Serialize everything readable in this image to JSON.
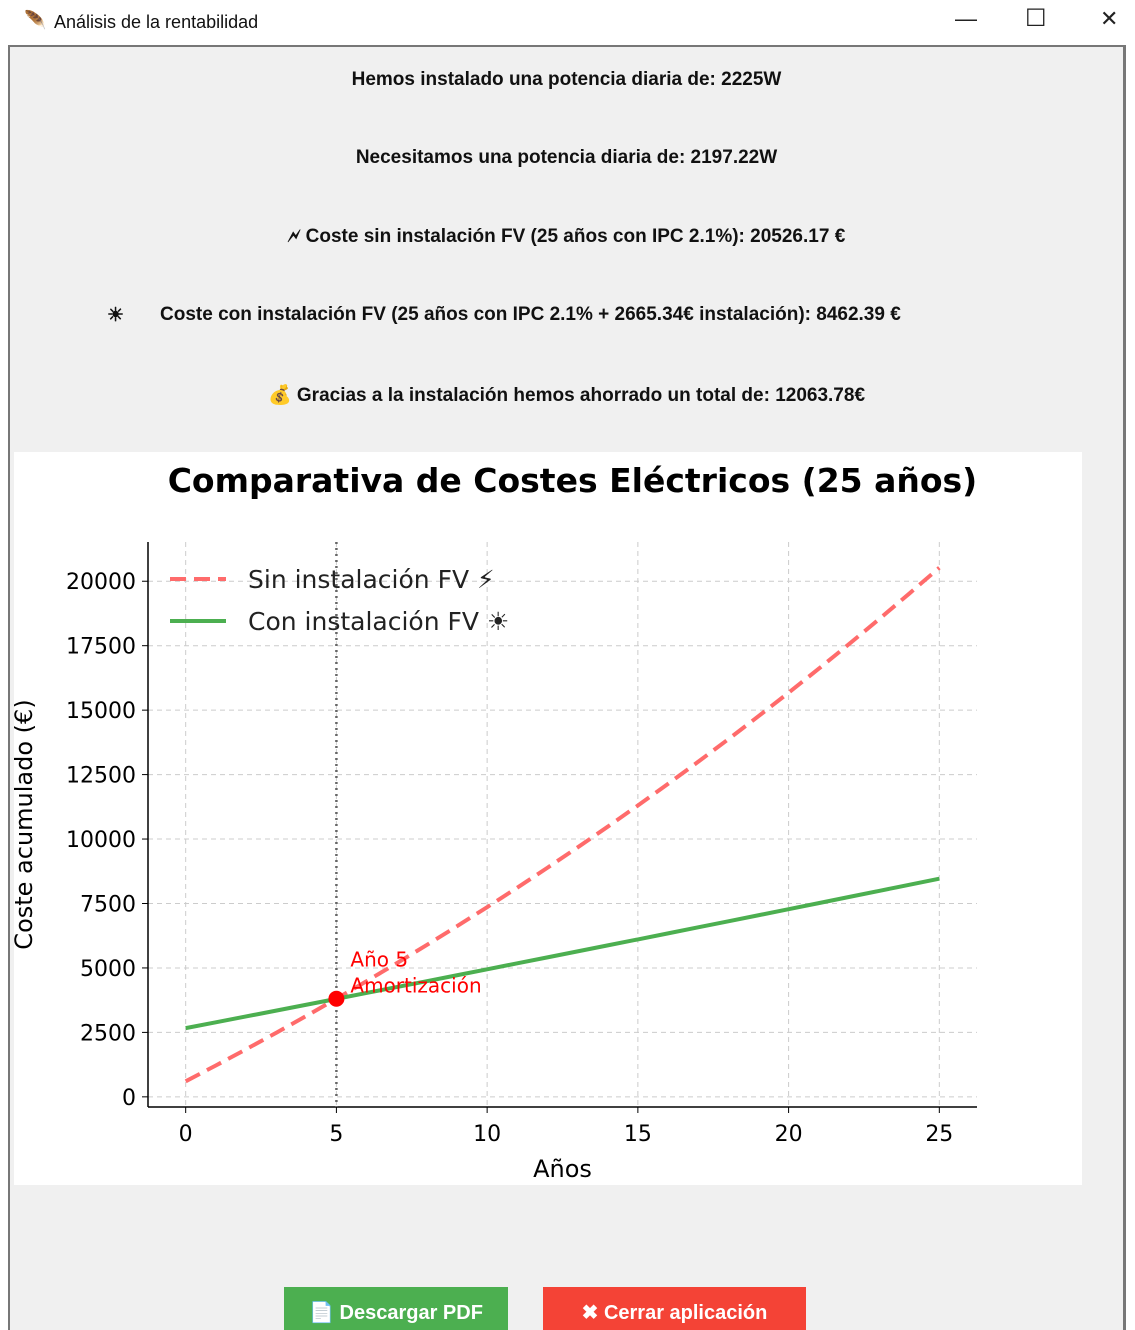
{
  "window": {
    "title": "Análisis de la rentabilidad"
  },
  "info": [
    "Hemos instalado una potencia diaria de: 2225W",
    "Necesitamos una potencia diaria de: 2197.22W",
    "🗲 Coste sin instalación FV (25 años con IPC 2.1%): 20526.17 €",
    "☀",
    "Coste con instalación FV (25 años con IPC 2.1% + 2665.34€ instalación): 8462.39 €",
    "💰 Gracias a la instalación hemos ahorrado un total de: 12063.78€"
  ],
  "chart_data": {
    "type": "line",
    "title": "Comparativa de Costes Eléctricos (25 años)",
    "x_label": "Años",
    "y_label": "Coste acumulado (€)",
    "x": [
      0,
      1,
      2,
      3,
      4,
      5,
      6,
      7,
      8,
      9,
      10,
      11,
      12,
      13,
      14,
      15,
      16,
      17,
      18,
      19,
      20,
      21,
      22,
      23,
      24,
      25
    ],
    "series": [
      {
        "name": "Sin instalación FV ⚡",
        "color": "#ff6b6b",
        "dashed": true,
        "values": [
          602,
          1216,
          1843,
          2483,
          3137,
          3805,
          4486,
          5182,
          5892,
          6618,
          7358,
          8114,
          8886,
          9675,
          10479,
          11301,
          12140,
          12997,
          13871,
          14764,
          15676,
          16606,
          17557,
          18527,
          19518,
          20526
        ]
      },
      {
        "name": "Con instalación FV ☀",
        "color": "#4caf50",
        "dashed": false,
        "values": [
          2665,
          2891,
          3118,
          3345,
          3573,
          3800,
          4029,
          4258,
          4487,
          4717,
          4948,
          5179,
          5410,
          5642,
          5875,
          6107,
          6341,
          6575,
          6809,
          7044,
          7279,
          7515,
          7751,
          7988,
          8225,
          8462
        ]
      }
    ],
    "breakeven": {
      "x": 5,
      "y": 3805,
      "color": "#ff0000",
      "label": [
        "Año 5",
        "Amortización"
      ]
    },
    "xlim": [
      -1.25,
      26.25
    ],
    "xticks": [
      0,
      5,
      10,
      15,
      20,
      25
    ],
    "ylim": [
      -394,
      21522
    ],
    "yticks": [
      0,
      2500,
      5000,
      7500,
      10000,
      12500,
      15000,
      17500,
      20000
    ],
    "grid": true,
    "legend": "upper left"
  },
  "buttons": [
    {
      "label": "📄 Descargar PDF",
      "color": "#4caf50"
    },
    {
      "label": "✖ Cerrar aplicación",
      "color": "#f44336"
    }
  ]
}
